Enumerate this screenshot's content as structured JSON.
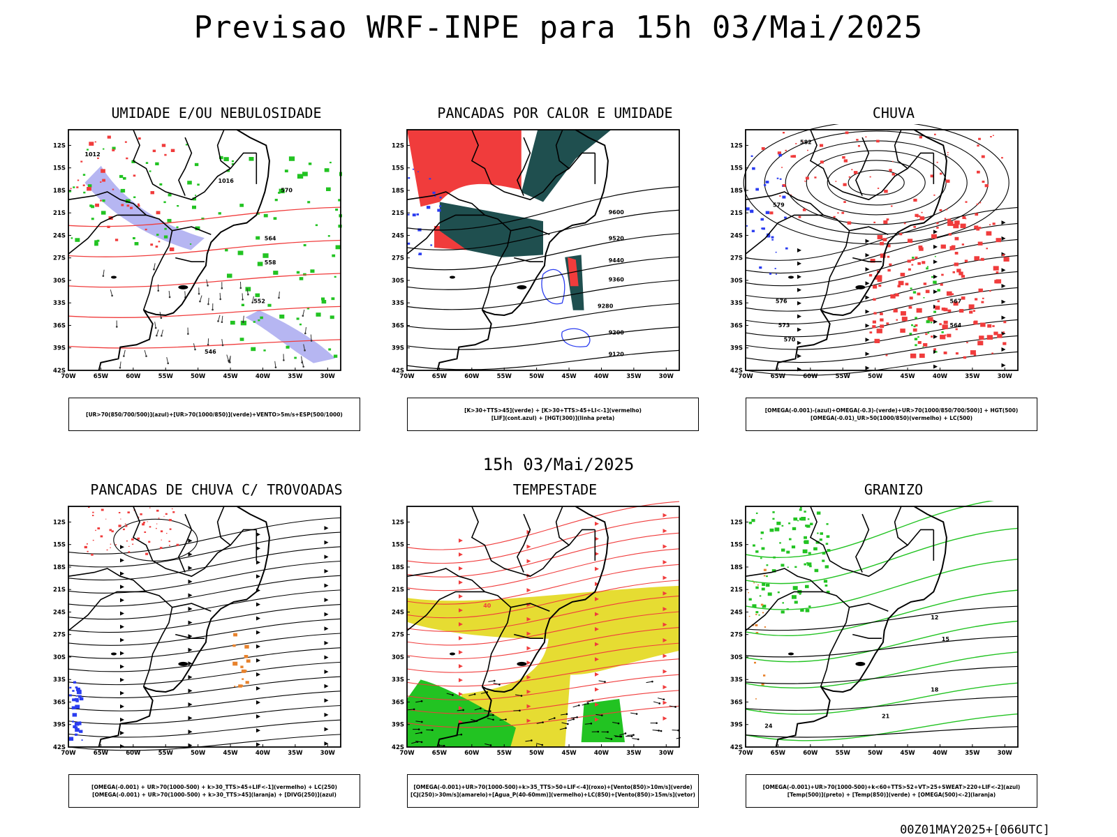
{
  "title": "Previsao WRF-INPE  para 15h 03/Mai/2025",
  "mid_date": "15h 03/Mai/2025",
  "footer": "00Z01MAY2025+[066UTC]",
  "axes": {
    "lat": [
      "12S",
      "15S",
      "18S",
      "21S",
      "24S",
      "27S",
      "30S",
      "33S",
      "36S",
      "39S",
      "42S"
    ],
    "lon": [
      "70W",
      "65W",
      "60W",
      "55W",
      "50W",
      "45W",
      "40W",
      "35W",
      "30W"
    ]
  },
  "colors": {
    "red": "#f03c3c",
    "green": "#22c322",
    "blue": "#2a3cf0",
    "lav": "#a9a9f0",
    "teal": "#1f4f4f",
    "yellow": "#e6dc32",
    "orange": "#e8822c"
  },
  "panels": [
    {
      "title": "UMIDADE E/OU NEBULOSIDADE",
      "legend": [
        "[UR>70(850/700/500)](azul)+[UR>70(1000/850)](verde)+VENTO>5m/s+ESP(500/1000)"
      ],
      "labels": [
        "1012",
        "1016",
        "564",
        "558",
        "552",
        "546",
        "570"
      ]
    },
    {
      "title": "PANCADAS POR CALOR E UMIDADE",
      "legend": [
        "[K>30+TTS>45](verde) + [K>30+TTS>45+LI<-1](vermelho)",
        "[LIF](cont.azul) + [HGT(300)](linha preta)"
      ],
      "labels": [
        "9600",
        "9520",
        "9440",
        "9360",
        "9280",
        "9200",
        "9120"
      ]
    },
    {
      "title": "CHUVA",
      "legend": [
        "[OMEGA(-0.001)-(azul)+OMEGA(-0.3)-(verde)+UR>70(1000/850/700/500)] + HGT(500)",
        "[OMEGA(-0.01)_UR>50(1000/850)(vermelho) + LC(500)"
      ],
      "labels": [
        "582",
        "579",
        "576",
        "573",
        "570",
        "567",
        "564"
      ]
    },
    {
      "title": "PANCADAS DE CHUVA C/ TROVOADAS",
      "legend": [
        "[OMEGA(-0.001) + UR>70(1000-500) + k>30_TTS>45+LIF<-1](vermelho) + LC(250)",
        "[OMEGA(-0.001) + UR>70(1000-500) + k>30_TTS>45](laranja) + [DIVG(250)](azul)"
      ],
      "labels": []
    },
    {
      "title": "TEMPESTADE",
      "legend": [
        "[OMEGA(-0.001)+UR>70(1000-500)+k>35_TTS>50+LIF<-4](roxo)+[Vento(850)>10m/s](verde)",
        "[CJ(250)>30m/s](amarelo)+[Agua_P(40-60mm)](vermelho)+LC(850)+[Vento(850)>15m/s](vetor)"
      ],
      "labels": [
        "40"
      ]
    },
    {
      "title": "GRANIZO",
      "legend": [
        "[OMEGA(-0.001)+UR>70(1000-500)+k<60+TTS>52+VT>25+SWEAT>220+LIF<-2](azul)",
        "[Temp(500)](preto) + [Temp(850)](verde) + [OMEGA(500)<-2](laranja)"
      ],
      "labels": [
        "12",
        "15",
        "18",
        "21",
        "24"
      ]
    }
  ]
}
